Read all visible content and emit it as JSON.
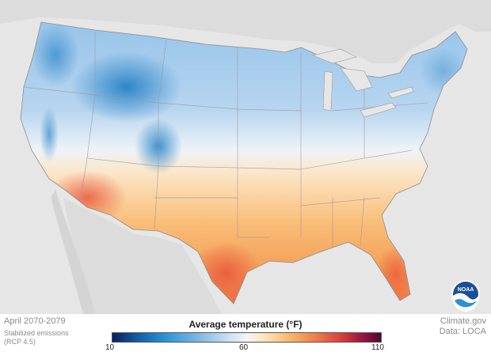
{
  "legend": {
    "title": "Average temperature (°F)",
    "min_label": "10",
    "mid_label": "60",
    "max_label": "110"
  },
  "caption": {
    "period": "April 2070-2079",
    "scenario_line1": "Stabilized emissions",
    "scenario_line2": "(RCP 4.5)"
  },
  "credits": {
    "source": "Climate.gov",
    "data": "Data: LOCA"
  },
  "logo": {
    "text": "NOAA"
  },
  "colors": {
    "cold": "#1f7cc4",
    "cool": "#b9d6ee",
    "neutral": "#f5f5f5",
    "warm": "#f8b86a",
    "hot": "#ef6b3e",
    "ocean_land_bg": "#e6e6e6"
  }
}
